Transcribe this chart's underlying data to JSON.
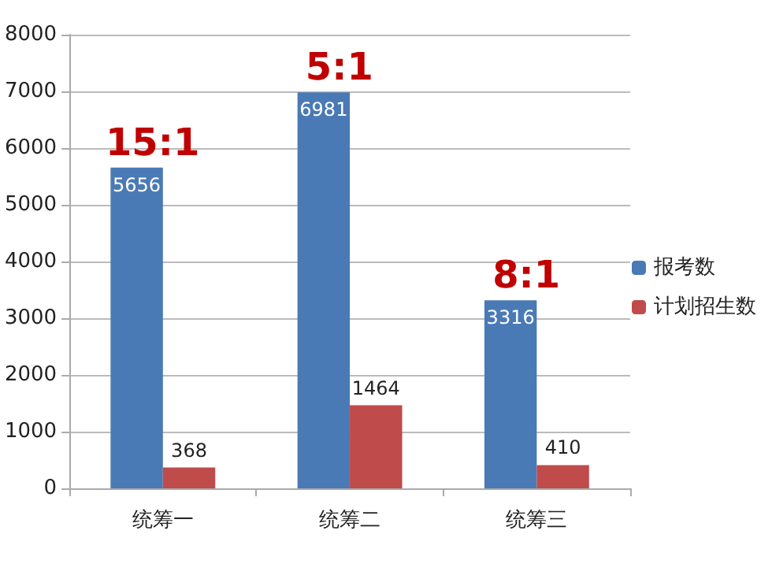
{
  "chart_data": {
    "type": "bar",
    "categories": [
      "统筹一",
      "统筹二",
      "统筹三"
    ],
    "series": [
      {
        "name": "报考数",
        "color": "#4a7ab5",
        "values": [
          5656,
          6981,
          3316
        ]
      },
      {
        "name": "计划招生数",
        "color": "#bf4b4b",
        "values": [
          368,
          1464,
          410
        ]
      }
    ],
    "ylim": [
      0,
      8000
    ],
    "yticks": [
      0,
      1000,
      2000,
      3000,
      4000,
      5000,
      6000,
      7000,
      8000
    ],
    "grid": "y",
    "legend": "right",
    "data_labels": true,
    "annotations": [
      {
        "text": "15:1",
        "x": "统筹一",
        "y": 5656
      },
      {
        "text": "5:1",
        "x": "统筹二",
        "y": 6981
      },
      {
        "text": "8:1",
        "x": "统筹三",
        "y": 3316
      }
    ]
  }
}
